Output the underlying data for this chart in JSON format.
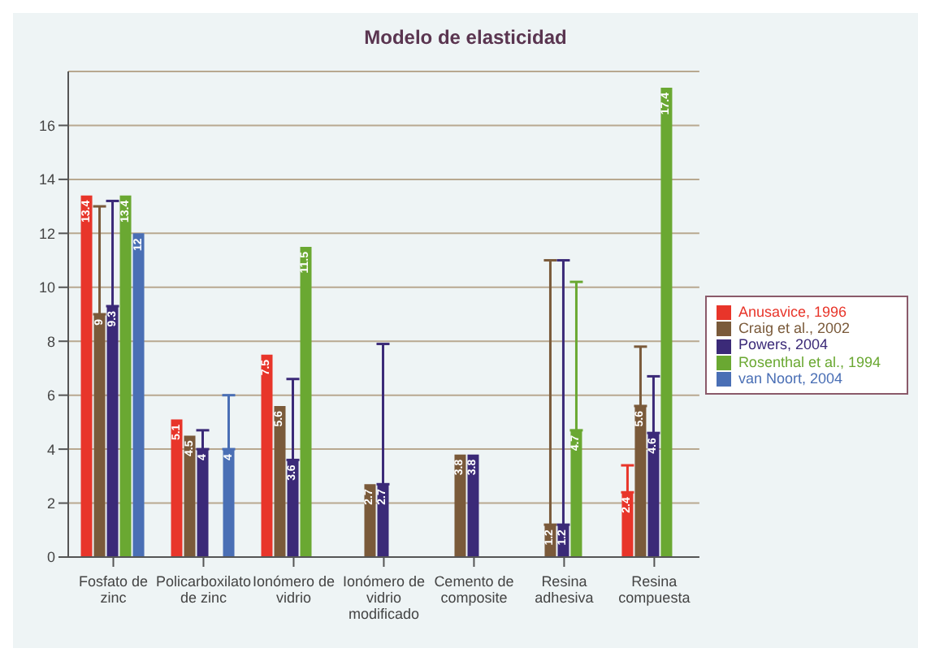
{
  "chart_data": {
    "type": "bar",
    "title": "Modelo de elasticidad",
    "categories": [
      "Fosfato de zinc",
      "Policarboxilato de zinc",
      "Ionómero de vidrio",
      "Ionómero de vidrio modificado",
      "Cemento de composite",
      "Resina adhesiva",
      "Resina compuesta"
    ],
    "series": [
      {
        "name": "Anusavice, 1996",
        "color": "#e8352a",
        "values": [
          13.4,
          5.1,
          7.5,
          null,
          null,
          null,
          2.4
        ],
        "errors": [
          null,
          null,
          null,
          null,
          null,
          null,
          [
            2.4,
            3.4
          ]
        ]
      },
      {
        "name": "Craig et al., 2002",
        "color": "#7a5a3a",
        "values": [
          9,
          4.5,
          5.6,
          2.7,
          3.8,
          1.2,
          5.6
        ],
        "errors": [
          [
            9,
            13
          ],
          null,
          null,
          null,
          null,
          [
            1.2,
            11
          ],
          [
            5.6,
            7.8
          ]
        ]
      },
      {
        "name": "Powers, 2004",
        "color": "#3b2a78",
        "values": [
          9.3,
          4,
          3.6,
          2.7,
          3.8,
          1.2,
          4.6
        ],
        "errors": [
          [
            9.3,
            13.2
          ],
          [
            4,
            4.7
          ],
          [
            3.6,
            6.6
          ],
          [
            2.7,
            7.9
          ],
          null,
          [
            1.2,
            11
          ],
          [
            4.6,
            6.7
          ]
        ]
      },
      {
        "name": "Rosenthal et al., 1994",
        "color": "#6aa832",
        "values": [
          13.4,
          null,
          11.5,
          null,
          null,
          4.7,
          17.4
        ],
        "errors": [
          null,
          null,
          null,
          null,
          null,
          [
            4.7,
            10.2
          ],
          null
        ]
      },
      {
        "name": "van Noort, 2004",
        "color": "#4a6fb5",
        "values": [
          12,
          4,
          null,
          null,
          null,
          null,
          null
        ],
        "errors": [
          null,
          [
            4,
            6
          ],
          null,
          null,
          null,
          null,
          null
        ]
      }
    ],
    "ylim": [
      0,
      18
    ],
    "yticks": [
      0,
      2,
      4,
      6,
      8,
      10,
      12,
      14,
      16
    ],
    "grid": "y",
    "legend": "right",
    "data_labels": true
  }
}
